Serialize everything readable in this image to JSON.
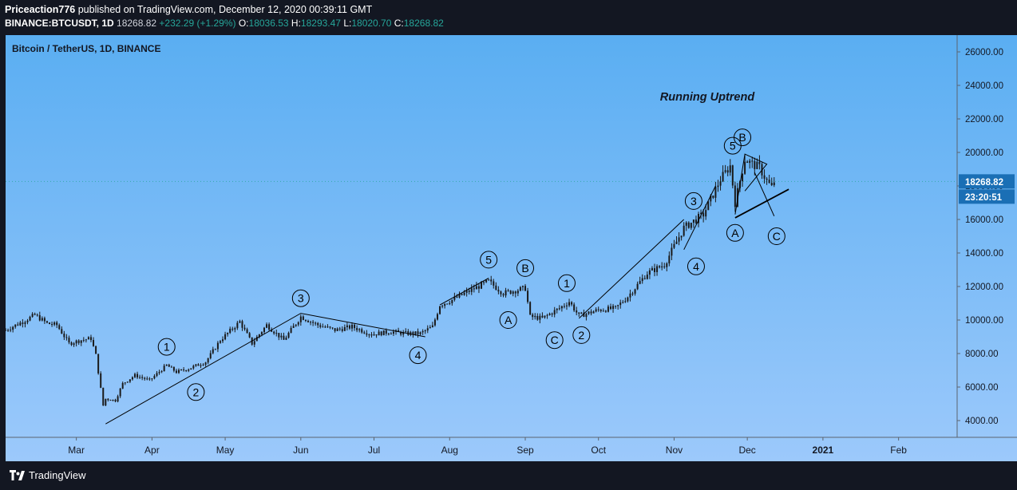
{
  "header": {
    "line1": {
      "author": "Priceaction776",
      "rest": " published on TradingView.com, December 12, 2020 00:39:11 GMT"
    },
    "line2": {
      "symbol": "BINANCE:BTCUSDT, 1D",
      "price": "18268.82",
      "change": "+232.29 (+1.29%)",
      "o_label": "O:",
      "o": "18036.53",
      "h_label": "H:",
      "h": "18293.47",
      "l_label": "L:",
      "l": "18020.70",
      "c_label": "C:",
      "c": "18268.82"
    }
  },
  "footer": {
    "brand": "TradingView"
  },
  "colors": {
    "up": "#26a69a",
    "candle": "#1a1a1a",
    "price_tag": "#1a6fb5",
    "bg_top": "#5aaef2",
    "bg_bottom": "#9cc9fb"
  },
  "chart_data": {
    "type": "candlestick",
    "title": "Bitcoin / TetherUS, 1D, BINANCE",
    "annotation": "Running Uptrend",
    "ylim": [
      3000,
      27000
    ],
    "y_ticks": [
      4000,
      6000,
      8000,
      10000,
      12000,
      14000,
      16000,
      18000,
      20000,
      22000,
      24000,
      26000
    ],
    "y_tick_labels": [
      "4000.00",
      "6000.00",
      "8000.00",
      "10000.00",
      "12000.00",
      "14000.00",
      "16000.00",
      "18000.00",
      "20000.00",
      "22000.00",
      "24000.00",
      "26000.00"
    ],
    "x_range": [
      "2020-02-01",
      "2021-02-25"
    ],
    "x_ticks": [
      {
        "date": "2020-03-01",
        "label": "Mar"
      },
      {
        "date": "2020-04-01",
        "label": "Apr"
      },
      {
        "date": "2020-05-01",
        "label": "May"
      },
      {
        "date": "2020-06-01",
        "label": "Jun"
      },
      {
        "date": "2020-07-01",
        "label": "Jul"
      },
      {
        "date": "2020-08-01",
        "label": "Aug"
      },
      {
        "date": "2020-09-01",
        "label": "Sep"
      },
      {
        "date": "2020-10-01",
        "label": "Oct"
      },
      {
        "date": "2020-11-01",
        "label": "Nov"
      },
      {
        "date": "2020-12-01",
        "label": "Dec"
      },
      {
        "date": "2021-01-01",
        "label": "2021"
      },
      {
        "date": "2021-02-01",
        "label": "Feb"
      }
    ],
    "price_series": [
      {
        "date": "2020-02-01",
        "close": 9400
      },
      {
        "date": "2020-02-08",
        "close": 9900
      },
      {
        "date": "2020-02-13",
        "close": 10300
      },
      {
        "date": "2020-02-18",
        "close": 9800
      },
      {
        "date": "2020-02-22",
        "close": 9700
      },
      {
        "date": "2020-02-27",
        "close": 8600
      },
      {
        "date": "2020-03-03",
        "close": 8800
      },
      {
        "date": "2020-03-07",
        "close": 8900
      },
      {
        "date": "2020-03-09",
        "close": 7900
      },
      {
        "date": "2020-03-12",
        "close": 4900
      },
      {
        "date": "2020-03-13",
        "close": 5300
      },
      {
        "date": "2020-03-17",
        "close": 5200
      },
      {
        "date": "2020-03-20",
        "close": 6200
      },
      {
        "date": "2020-03-25",
        "close": 6700
      },
      {
        "date": "2020-03-31",
        "close": 6400
      },
      {
        "date": "2020-04-07",
        "close": 7300
      },
      {
        "date": "2020-04-11",
        "close": 6900
      },
      {
        "date": "2020-04-16",
        "close": 7100
      },
      {
        "date": "2020-04-23",
        "close": 7500
      },
      {
        "date": "2020-04-29",
        "close": 8800
      },
      {
        "date": "2020-05-07",
        "close": 9900
      },
      {
        "date": "2020-05-12",
        "close": 8600
      },
      {
        "date": "2020-05-18",
        "close": 9700
      },
      {
        "date": "2020-05-25",
        "close": 8800
      },
      {
        "date": "2020-06-01",
        "close": 10200
      },
      {
        "date": "2020-06-08",
        "close": 9700
      },
      {
        "date": "2020-06-15",
        "close": 9400
      },
      {
        "date": "2020-06-22",
        "close": 9600
      },
      {
        "date": "2020-06-30",
        "close": 9150
      },
      {
        "date": "2020-07-08",
        "close": 9300
      },
      {
        "date": "2020-07-14",
        "close": 9200
      },
      {
        "date": "2020-07-20",
        "close": 9200
      },
      {
        "date": "2020-07-25",
        "close": 9600
      },
      {
        "date": "2020-07-28",
        "close": 10900
      },
      {
        "date": "2020-08-02",
        "close": 11200
      },
      {
        "date": "2020-08-10",
        "close": 11800
      },
      {
        "date": "2020-08-17",
        "close": 12300
      },
      {
        "date": "2020-08-23",
        "close": 11600
      },
      {
        "date": "2020-09-01",
        "close": 11900
      },
      {
        "date": "2020-09-03",
        "close": 10200
      },
      {
        "date": "2020-09-08",
        "close": 10100
      },
      {
        "date": "2020-09-15",
        "close": 10700
      },
      {
        "date": "2020-09-19",
        "close": 11100
      },
      {
        "date": "2020-09-23",
        "close": 10250
      },
      {
        "date": "2020-10-01",
        "close": 10600
      },
      {
        "date": "2020-10-08",
        "close": 10700
      },
      {
        "date": "2020-10-13",
        "close": 11400
      },
      {
        "date": "2020-10-21",
        "close": 12800
      },
      {
        "date": "2020-10-28",
        "close": 13300
      },
      {
        "date": "2020-11-05",
        "close": 15500
      },
      {
        "date": "2020-11-13",
        "close": 16300
      },
      {
        "date": "2020-11-20",
        "close": 18400
      },
      {
        "date": "2020-11-24",
        "close": 19200
      },
      {
        "date": "2020-11-26",
        "close": 17000
      },
      {
        "date": "2020-11-30",
        "close": 19600
      },
      {
        "date": "2020-12-03",
        "close": 19300
      },
      {
        "date": "2020-12-06",
        "close": 19100
      },
      {
        "date": "2020-12-09",
        "close": 18300
      },
      {
        "date": "2020-12-11",
        "close": 17900
      },
      {
        "date": "2020-12-12",
        "close": 18268.82
      }
    ],
    "current_price": {
      "value": 18268.82,
      "label": "18268.82",
      "countdown": "23:20:51"
    },
    "trend_lines": [
      [
        {
          "date": "2020-03-13",
          "price": 3800
        },
        {
          "date": "2020-06-01",
          "price": 10400
        },
        {
          "date": "2020-07-22",
          "price": 9000
        }
      ],
      [
        {
          "date": "2020-07-28",
          "price": 10900
        },
        {
          "date": "2020-08-17",
          "price": 12500
        }
      ],
      [
        {
          "date": "2020-09-23",
          "price": 10100
        },
        {
          "date": "2020-11-05",
          "price": 16000
        }
      ],
      [
        {
          "date": "2020-11-05",
          "price": 14200
        },
        {
          "date": "2020-11-18",
          "price": 18000
        }
      ],
      [
        {
          "date": "2020-11-26",
          "price": 16100
        },
        {
          "date": "2020-12-18",
          "price": 17800
        }
      ],
      [
        {
          "date": "2020-11-26",
          "price": 16300
        },
        {
          "date": "2020-11-30",
          "price": 19900
        },
        {
          "date": "2020-12-09",
          "price": 19300
        },
        {
          "date": "2020-11-30",
          "price": 17700
        }
      ],
      [
        {
          "date": "2020-12-04",
          "price": 18800
        },
        {
          "date": "2020-12-12",
          "price": 16200
        }
      ]
    ],
    "wave_labels": [
      {
        "label": "1",
        "date": "2020-04-07",
        "price": 8400
      },
      {
        "label": "2",
        "date": "2020-04-19",
        "price": 5700
      },
      {
        "label": "3",
        "date": "2020-06-01",
        "price": 11300
      },
      {
        "label": "4",
        "date": "2020-07-19",
        "price": 7900
      },
      {
        "label": "5",
        "date": "2020-08-17",
        "price": 13600
      },
      {
        "label": "A",
        "date": "2020-08-25",
        "price": 10000
      },
      {
        "label": "B",
        "date": "2020-09-01",
        "price": 13100
      },
      {
        "label": "C",
        "date": "2020-09-13",
        "price": 8800
      },
      {
        "label": "1",
        "date": "2020-09-18",
        "price": 12200
      },
      {
        "label": "2",
        "date": "2020-09-24",
        "price": 9100
      },
      {
        "label": "3",
        "date": "2020-11-09",
        "price": 17100
      },
      {
        "label": "4",
        "date": "2020-11-10",
        "price": 13200
      },
      {
        "label": "5",
        "date": "2020-11-25",
        "price": 20400
      },
      {
        "label": "B",
        "date": "2020-11-29",
        "price": 20900
      },
      {
        "label": "A",
        "date": "2020-11-26",
        "price": 15200
      },
      {
        "label": "C",
        "date": "2020-12-13",
        "price": 15000
      }
    ]
  }
}
